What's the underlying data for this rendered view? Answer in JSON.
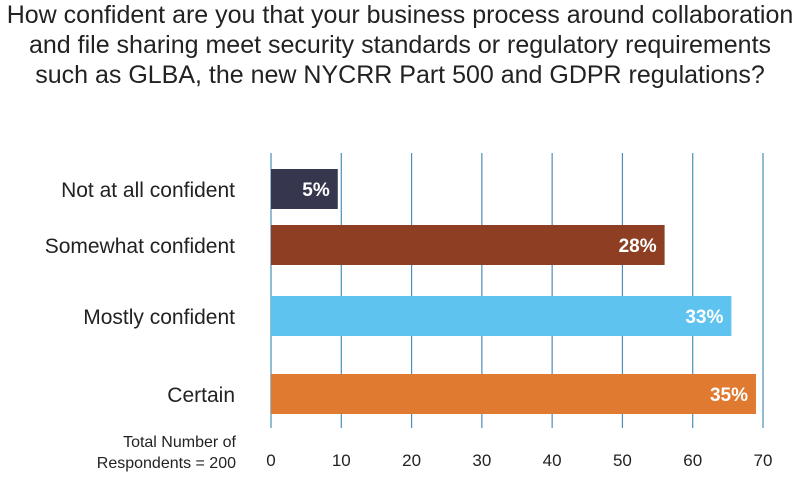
{
  "chart_data": {
    "type": "bar",
    "orientation": "horizontal",
    "title": "How confident are you that your business process around collaboration and file sharing meet security standards or regulatory requirements such as GLBA, the new NYCRR Part 500 and GDPR regulations?",
    "categories": [
      "Not at all confident",
      "Somewhat confident",
      "Mostly confident",
      "Certain"
    ],
    "values": [
      9.5,
      56,
      65.5,
      69
    ],
    "data_labels": [
      "5%",
      "28%",
      "33%",
      "35%"
    ],
    "colors": [
      "#37364f",
      "#8e3e22",
      "#5ec3ef",
      "#e07a30"
    ],
    "xlim": [
      0,
      70
    ],
    "xticks": [
      "0",
      "10",
      "20",
      "30",
      "40",
      "50",
      "60",
      "70"
    ],
    "grid": "vertical",
    "footnote": "Total Number of Respondents = 200"
  }
}
